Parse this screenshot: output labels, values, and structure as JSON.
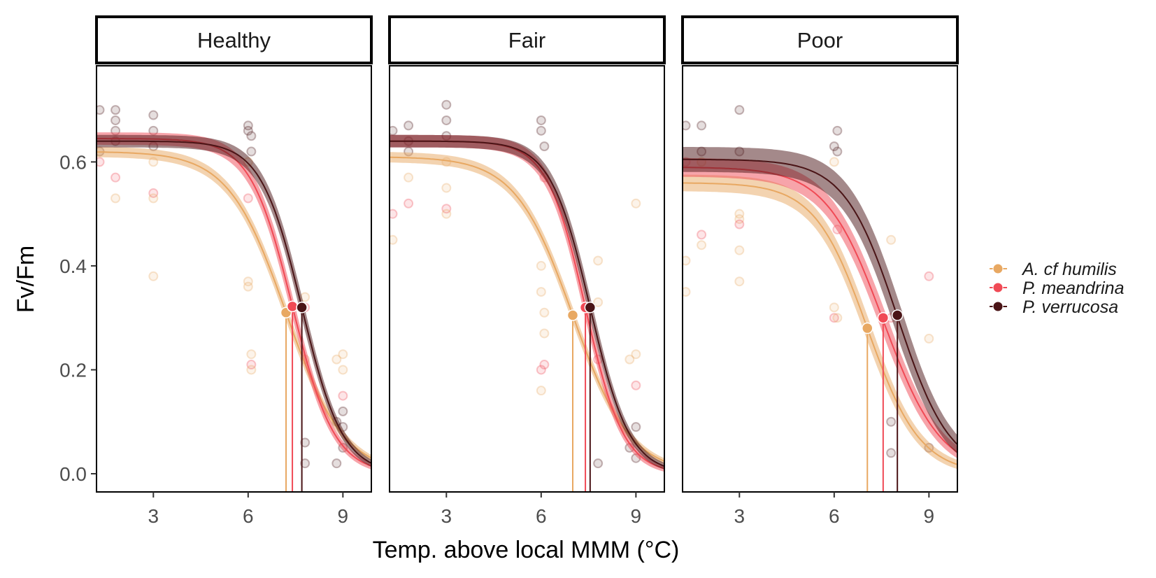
{
  "chart_data": {
    "type": "line",
    "title": "",
    "xlabel": "Temp. above local MMM (°C)",
    "ylabel": "Fv/Fm",
    "xlim": [
      1.2,
      9.9
    ],
    "ylim": [
      -0.035,
      0.785
    ],
    "xticks": [
      3,
      6,
      9
    ],
    "yticks": [
      0.0,
      0.2,
      0.4,
      0.6
    ],
    "ytick_labels": [
      "0.0",
      "0.2",
      "0.4",
      "0.6"
    ],
    "grid": false,
    "legend_position": "right",
    "series": [
      {
        "name": "A. cf humilis",
        "color": "#E8A862"
      },
      {
        "name": "P. meandrina",
        "color": "#F04A55"
      },
      {
        "name": "P. verrucosa",
        "color": "#4A1416"
      }
    ],
    "facets": [
      {
        "label": "Healthy",
        "curves": [
          {
            "series": "A. cf humilis",
            "top": 0.62,
            "ed50": 7.2,
            "slope": 1.1,
            "band": 0.025,
            "ed50_fv": 0.31
          },
          {
            "series": "P. meandrina",
            "top": 0.645,
            "ed50": 7.4,
            "slope": 1.5,
            "band": 0.03,
            "ed50_fv": 0.322
          },
          {
            "series": "P. verrucosa",
            "top": 0.64,
            "ed50": 7.7,
            "slope": 1.55,
            "band": 0.03,
            "ed50_fv": 0.32
          }
        ]
      },
      {
        "label": "Fair",
        "curves": [
          {
            "series": "A. cf humilis",
            "top": 0.61,
            "ed50": 7.0,
            "slope": 1.1,
            "band": 0.025,
            "ed50_fv": 0.305
          },
          {
            "series": "P. meandrina",
            "top": 0.64,
            "ed50": 7.4,
            "slope": 1.65,
            "band": 0.03,
            "ed50_fv": 0.32
          },
          {
            "series": "P. verrucosa",
            "top": 0.64,
            "ed50": 7.55,
            "slope": 1.6,
            "band": 0.03,
            "ed50_fv": 0.32
          }
        ]
      },
      {
        "label": "Poor",
        "curves": [
          {
            "series": "A. cf humilis",
            "top": 0.56,
            "ed50": 7.05,
            "slope": 1.2,
            "band": 0.04,
            "ed50_fv": 0.28
          },
          {
            "series": "P. meandrina",
            "top": 0.59,
            "ed50": 7.55,
            "slope": 1.1,
            "band": 0.045,
            "ed50_fv": 0.3
          },
          {
            "series": "P. verrucosa",
            "top": 0.605,
            "ed50": 8.0,
            "slope": 1.2,
            "band": 0.06,
            "ed50_fv": 0.305
          }
        ]
      }
    ],
    "observations": [
      {
        "facet": "Healthy",
        "x": [
          1.3,
          1.3,
          1.3,
          1.8,
          1.8,
          1.8,
          1.8,
          1.8,
          1.8,
          3.0,
          3.0,
          3.0,
          3.0,
          3.0,
          3.0,
          3.0,
          6.0,
          6.0,
          6.0,
          6.0,
          6.0,
          6.0,
          6.1,
          6.1,
          6.1,
          6.1,
          6.1,
          7.8,
          7.8,
          7.8,
          7.8,
          7.8,
          8.8,
          8.8,
          8.8,
          9.0,
          9.0,
          9.0,
          9.0,
          9.0,
          9.0
        ],
        "y": [
          0.7,
          0.6,
          0.62,
          0.7,
          0.68,
          0.66,
          0.64,
          0.57,
          0.53,
          0.69,
          0.66,
          0.63,
          0.6,
          0.54,
          0.53,
          0.38,
          0.67,
          0.66,
          0.6,
          0.53,
          0.37,
          0.36,
          0.65,
          0.62,
          0.23,
          0.21,
          0.2,
          0.34,
          0.32,
          0.22,
          0.06,
          0.02,
          0.22,
          0.1,
          0.02,
          0.23,
          0.2,
          0.15,
          0.12,
          0.09,
          0.05
        ]
      },
      {
        "facet": "Fair",
        "x": [
          1.3,
          1.3,
          1.3,
          1.8,
          1.8,
          1.8,
          1.8,
          1.8,
          3.0,
          3.0,
          3.0,
          3.0,
          3.0,
          3.0,
          3.0,
          6.0,
          6.0,
          6.0,
          6.0,
          6.0,
          6.0,
          6.1,
          6.1,
          6.1,
          6.1,
          6.1,
          7.8,
          7.8,
          7.8,
          7.8,
          8.8,
          8.8,
          9.0,
          9.0,
          9.0,
          9.0,
          9.0
        ],
        "y": [
          0.66,
          0.5,
          0.45,
          0.67,
          0.64,
          0.62,
          0.57,
          0.52,
          0.71,
          0.68,
          0.65,
          0.6,
          0.55,
          0.51,
          0.5,
          0.68,
          0.66,
          0.4,
          0.35,
          0.2,
          0.16,
          0.63,
          0.57,
          0.31,
          0.27,
          0.21,
          0.41,
          0.33,
          0.22,
          0.02,
          0.22,
          0.05,
          0.52,
          0.23,
          0.17,
          0.09,
          0.03
        ]
      },
      {
        "facet": "Poor",
        "x": [
          1.3,
          1.3,
          1.3,
          1.3,
          1.8,
          1.8,
          1.8,
          1.8,
          1.8,
          3.0,
          3.0,
          3.0,
          3.0,
          3.0,
          3.0,
          3.0,
          6.0,
          6.0,
          6.0,
          6.0,
          6.1,
          6.1,
          6.1,
          6.1,
          7.8,
          7.8,
          7.8,
          7.8,
          9.0,
          9.0,
          9.0
        ],
        "y": [
          0.67,
          0.6,
          0.41,
          0.35,
          0.67,
          0.62,
          0.6,
          0.46,
          0.44,
          0.7,
          0.62,
          0.5,
          0.49,
          0.48,
          0.43,
          0.37,
          0.63,
          0.6,
          0.32,
          0.3,
          0.66,
          0.62,
          0.47,
          0.3,
          0.45,
          0.3,
          0.1,
          0.04,
          0.38,
          0.26,
          0.05
        ]
      }
    ]
  }
}
